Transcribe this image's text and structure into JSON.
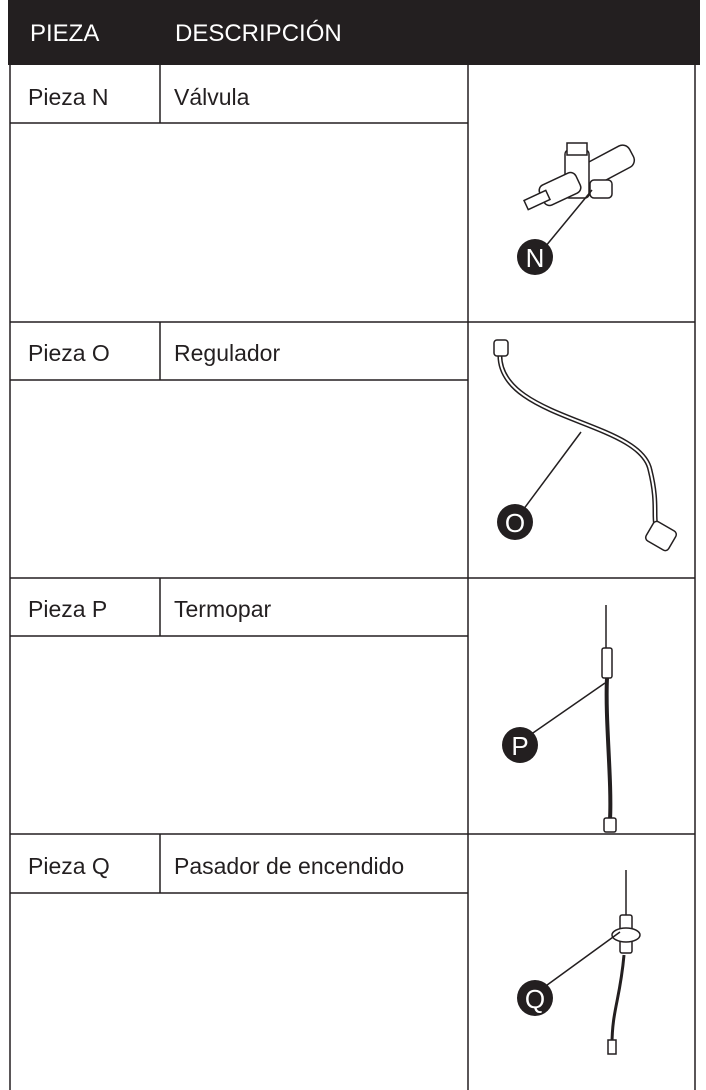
{
  "header": {
    "col1": "PIEZA",
    "col2": "DESCRIPCIÓN"
  },
  "rows": [
    {
      "piece": "Pieza N",
      "description": "Válvula",
      "label": "N"
    },
    {
      "piece": "Pieza O",
      "description": "Regulador",
      "label": "O"
    },
    {
      "piece": "Pieza P",
      "description": "Termopar",
      "label": "P"
    },
    {
      "piece": "Pieza Q",
      "description": "Pasador de encendido",
      "label": "Q"
    }
  ]
}
